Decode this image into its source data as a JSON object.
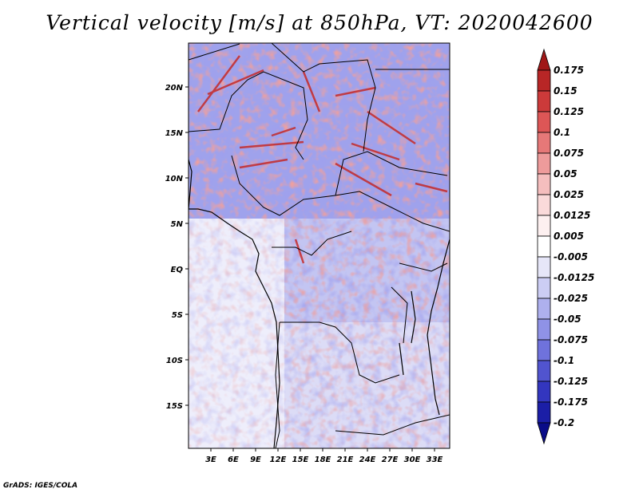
{
  "title": "Vertical velocity [m/s] at 850hPa, VT: 2020042600",
  "footer": "GrADS: IGES/COLA",
  "map": {
    "lat_labels": [
      "20N",
      "15N",
      "10N",
      "5N",
      "EQ",
      "5S",
      "10S",
      "15S"
    ],
    "lon_labels": [
      "3E",
      "6E",
      "9E",
      "12E",
      "15E",
      "18E",
      "21E",
      "24E",
      "27E",
      "30E",
      "33E"
    ]
  },
  "colorbar": {
    "labels": [
      "0.175",
      "0.15",
      "0.125",
      "0.1",
      "0.075",
      "0.05",
      "0.025",
      "0.0125",
      "0.005",
      "-0.005",
      "-0.0125",
      "-0.025",
      "-0.05",
      "-0.075",
      "-0.1",
      "-0.125",
      "-0.175",
      "-0.2"
    ],
    "colors": [
      "#a01818",
      "#b82626",
      "#cc3a3a",
      "#dd5656",
      "#e67878",
      "#ee9b9b",
      "#f5bebe",
      "#fadada",
      "#fdf0f0",
      "#ffffff",
      "#e6e6f8",
      "#cccdf4",
      "#aeb0ee",
      "#8f92e6",
      "#6f72dc",
      "#5154cf",
      "#3336bf",
      "#1b1ea6",
      "#0a0c88"
    ]
  }
}
